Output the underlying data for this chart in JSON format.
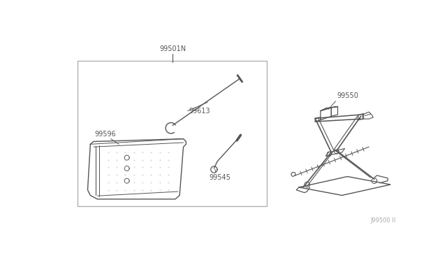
{
  "bg_color": "#ffffff",
  "line_color": "#555555",
  "box_color": "#888888",
  "fig_width": 6.4,
  "fig_height": 3.72,
  "dpi": 100,
  "watermark": "J99500 II",
  "label_fontsize": 7.0
}
